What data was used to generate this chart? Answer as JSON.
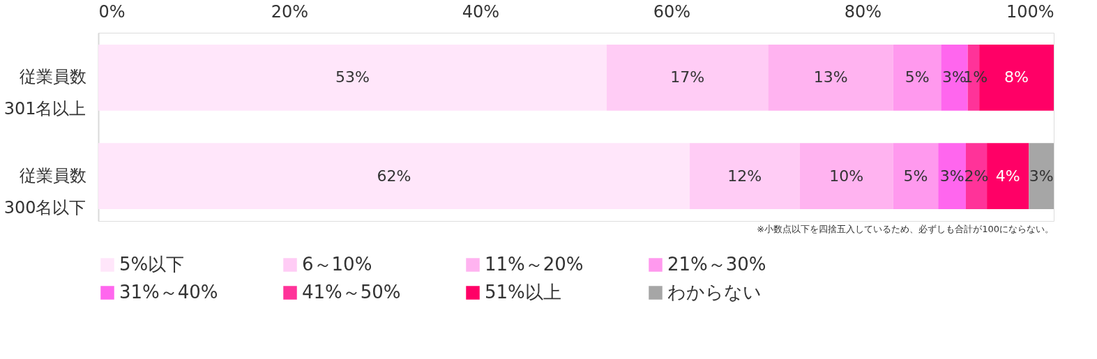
{
  "chart_data": {
    "type": "bar",
    "orientation": "horizontal",
    "stacked": true,
    "categories": [
      "従業員数\n301名以上",
      "従業員数\n300名以下"
    ],
    "xlim": [
      0,
      100
    ],
    "xticks": [
      {
        "value": 0,
        "label": "0%"
      },
      {
        "value": 20,
        "label": "20%"
      },
      {
        "value": 40,
        "label": "40%"
      },
      {
        "value": 60,
        "label": "60%"
      },
      {
        "value": 80,
        "label": "80%"
      },
      {
        "value": 100,
        "label": "100%"
      }
    ],
    "grid": false,
    "legend": "bottom",
    "annotations": [
      "※小数点以下を四捨五入しているため、必ずしも合計が100にならない。"
    ],
    "series": [
      {
        "name": "5%以下",
        "color": "#ffe6fa",
        "values": [
          53.2,
          61.9
        ],
        "value_labels": [
          "53%",
          "62%"
        ]
      },
      {
        "name": "6～10%",
        "color": "#ffccf5",
        "values": [
          16.9,
          11.5
        ],
        "value_labels": [
          "17%",
          "12%"
        ]
      },
      {
        "name": "11%～20%",
        "color": "#ffb3f0",
        "values": [
          13.1,
          9.8
        ],
        "value_labels": [
          "13%",
          "10%"
        ]
      },
      {
        "name": "21%～30%",
        "color": "#ff99ee",
        "values": [
          5.0,
          4.7
        ],
        "value_labels": [
          "5%",
          "5%"
        ]
      },
      {
        "name": "31%～40%",
        "color": "#ff66ee",
        "values": [
          2.8,
          2.9
        ],
        "value_labels": [
          "3%",
          "3%"
        ]
      },
      {
        "name": "41%～50%",
        "color": "#ff3399",
        "values": [
          1.2,
          2.2
        ],
        "value_labels": [
          "1%",
          "2%"
        ]
      },
      {
        "name": "51%以上",
        "color": "#ff0066",
        "values": [
          7.8,
          4.4
        ],
        "value_labels": [
          "8%",
          "4%"
        ]
      },
      {
        "name": "わからない",
        "color": "#a6a6a6",
        "values": [
          null,
          2.6
        ],
        "value_labels": [
          null,
          "3%"
        ]
      }
    ]
  }
}
